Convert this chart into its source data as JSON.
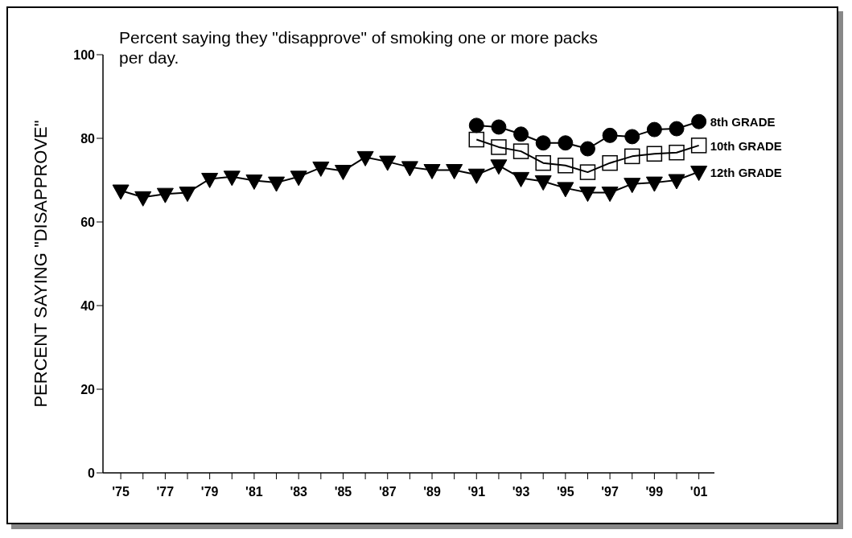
{
  "chart_data": {
    "type": "line",
    "title": "Percent saying they \"disapprove\" of smoking one or more packs per day.",
    "ylabel": "PERCENT SAYING \"DISAPPROVE\"",
    "x": [
      1975,
      1976,
      1977,
      1978,
      1979,
      1980,
      1981,
      1982,
      1983,
      1984,
      1985,
      1986,
      1987,
      1988,
      1989,
      1990,
      1991,
      1992,
      1993,
      1994,
      1995,
      1996,
      1997,
      1998,
      1999,
      2000,
      2001
    ],
    "series": [
      {
        "name": "8th GRADE",
        "color": "#000000",
        "marker": "circle",
        "values": [
          null,
          null,
          null,
          null,
          null,
          null,
          null,
          null,
          null,
          null,
          null,
          null,
          null,
          null,
          null,
          null,
          83.1,
          82.7,
          81.0,
          78.9,
          78.9,
          77.5,
          80.7,
          80.4,
          82.1,
          82.3,
          84.0
        ]
      },
      {
        "name": "10th GRADE",
        "color": "#000000",
        "marker": "square",
        "values": [
          null,
          null,
          null,
          null,
          null,
          null,
          null,
          null,
          null,
          null,
          null,
          null,
          null,
          null,
          null,
          null,
          79.7,
          77.9,
          76.9,
          74.1,
          73.5,
          71.9,
          74.1,
          75.7,
          76.3,
          76.6,
          78.3
        ]
      },
      {
        "name": "12th GRADE",
        "color": "#000000",
        "marker": "triangle",
        "values": [
          67.5,
          65.9,
          66.7,
          67.0,
          70.3,
          70.8,
          69.9,
          69.4,
          70.8,
          73.0,
          72.2,
          75.5,
          74.4,
          73.1,
          72.4,
          72.4,
          71.3,
          73.5,
          70.5,
          69.7,
          68.1,
          67.0,
          67.0,
          69.1,
          69.4,
          70.0,
          72.0
        ]
      }
    ],
    "xlim": [
      1974.2,
      2001.7
    ],
    "xticks": [
      {
        "value": 1975,
        "label": "'75"
      },
      {
        "value": 1976,
        "label": null
      },
      {
        "value": 1977,
        "label": "'77"
      },
      {
        "value": 1978,
        "label": null
      },
      {
        "value": 1979,
        "label": "'79"
      },
      {
        "value": 1980,
        "label": null
      },
      {
        "value": 1981,
        "label": "'81"
      },
      {
        "value": 1982,
        "label": null
      },
      {
        "value": 1983,
        "label": "'83"
      },
      {
        "value": 1984,
        "label": null
      },
      {
        "value": 1985,
        "label": "'85"
      },
      {
        "value": 1986,
        "label": null
      },
      {
        "value": 1987,
        "label": "'87"
      },
      {
        "value": 1988,
        "label": null
      },
      {
        "value": 1989,
        "label": "'89"
      },
      {
        "value": 1990,
        "label": null
      },
      {
        "value": 1991,
        "label": "'91"
      },
      {
        "value": 1992,
        "label": null
      },
      {
        "value": 1993,
        "label": "'93"
      },
      {
        "value": 1994,
        "label": null
      },
      {
        "value": 1995,
        "label": "'95"
      },
      {
        "value": 1996,
        "label": null
      },
      {
        "value": 1997,
        "label": "'97"
      },
      {
        "value": 1998,
        "label": null
      },
      {
        "value": 1999,
        "label": "'99"
      },
      {
        "value": 2000,
        "label": null
      },
      {
        "value": 2001,
        "label": "'01"
      }
    ],
    "ylim": [
      0,
      100
    ],
    "yticks": [
      0,
      20,
      40,
      60,
      80,
      100
    ],
    "grid": false,
    "legend": false,
    "line_style": "solid"
  }
}
